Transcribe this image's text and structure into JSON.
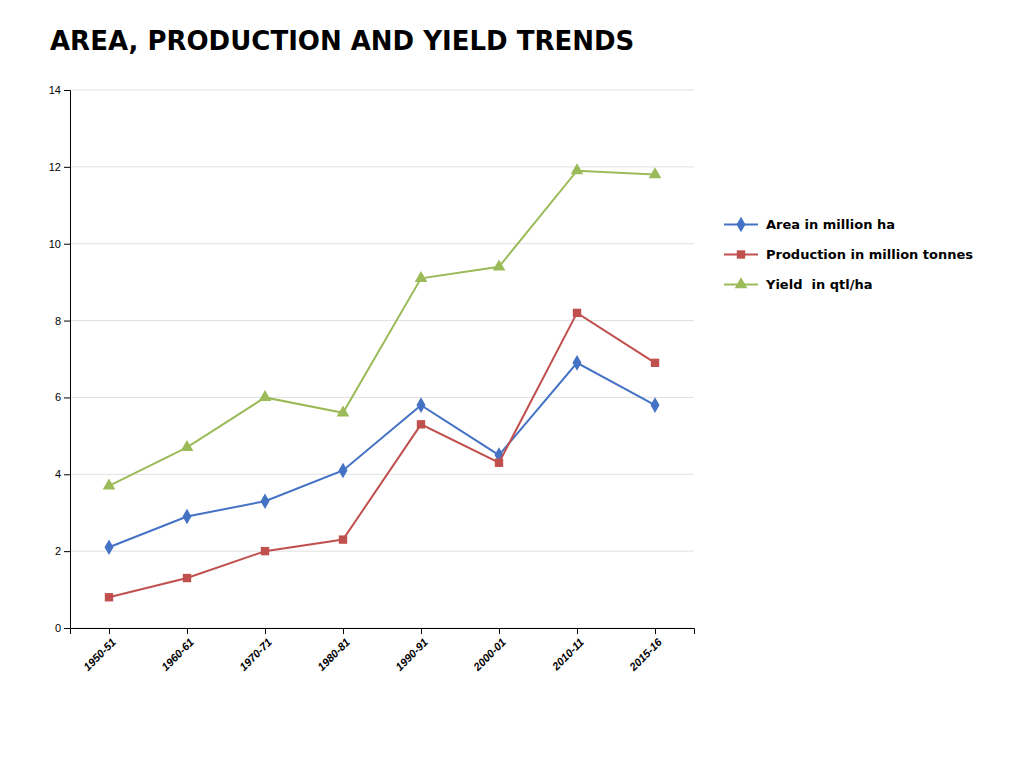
{
  "chart_data": {
    "type": "line",
    "title": "AREA, PRODUCTION AND YIELD TRENDS",
    "categories": [
      "1950-51",
      "1960-61",
      "1970-71",
      "1980-81",
      "1990-91",
      "2000-01",
      "2010-11",
      "2015-16"
    ],
    "series": [
      {
        "name": "Area in million ha",
        "color": "#4472C4",
        "marker": "diamond",
        "values": [
          2.1,
          2.9,
          3.3,
          4.1,
          5.8,
          4.5,
          6.9,
          5.8
        ]
      },
      {
        "name": "Production in million tonnes",
        "color": "#C0504D",
        "marker": "square",
        "values": [
          0.8,
          1.3,
          2.0,
          2.3,
          5.3,
          4.3,
          8.2,
          6.9
        ]
      },
      {
        "name": "Yield  in qtl/ha",
        "color": "#9BBB59",
        "marker": "triangle",
        "values": [
          3.7,
          4.7,
          6.0,
          5.6,
          9.1,
          9.4,
          11.9,
          11.8
        ]
      }
    ],
    "ylim": [
      0,
      14
    ],
    "yticks": [
      0,
      2,
      4,
      6,
      8,
      10,
      12,
      14
    ],
    "grid": true,
    "legend": "right"
  }
}
